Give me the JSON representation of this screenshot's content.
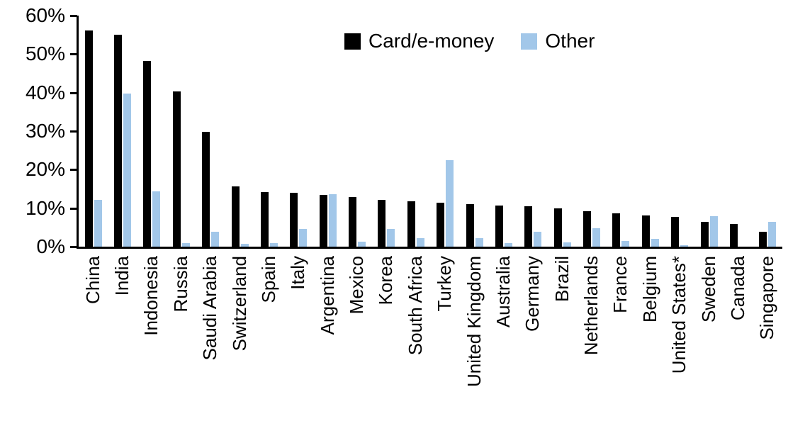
{
  "chart_data": {
    "type": "bar",
    "title": "",
    "xlabel": "",
    "ylabel": "",
    "ylim": [
      0,
      60
    ],
    "yticks": [
      0,
      10,
      20,
      30,
      40,
      50,
      60
    ],
    "ytick_labels": [
      "0%",
      "10%",
      "20%",
      "30%",
      "40%",
      "50%",
      "60%"
    ],
    "grid": false,
    "legend_position": "top-center",
    "categories": [
      "China",
      "India",
      "Indonesia",
      "Russia",
      "Saudi Arabia",
      "Switzerland",
      "Spain",
      "Italy",
      "Argentina",
      "Mexico",
      "Korea",
      "South Africa",
      "Turkey",
      "United Kingdom",
      "Australia",
      "Germany",
      "Brazil",
      "Netherlands",
      "France",
      "Belgium",
      "United States*",
      "Sweden",
      "Canada",
      "Singapore"
    ],
    "series": [
      {
        "name": "Card/e-money",
        "color": "#000000",
        "values": [
          56.2,
          55.0,
          48.2,
          40.4,
          29.8,
          15.7,
          14.2,
          14.0,
          13.4,
          12.9,
          12.1,
          11.7,
          11.5,
          11.0,
          10.7,
          10.5,
          10.0,
          9.2,
          8.6,
          8.1,
          7.8,
          6.5,
          5.9,
          3.8
        ]
      },
      {
        "name": "Other",
        "color": "#A2C7E9",
        "values": [
          12.2,
          39.7,
          14.4,
          0.9,
          3.9,
          0.8,
          0.9,
          4.6,
          13.7,
          1.2,
          4.6,
          2.3,
          22.4,
          2.3,
          1.0,
          3.9,
          1.1,
          4.7,
          1.5,
          2.0,
          0.3,
          8.0,
          0.0,
          6.5
        ]
      }
    ],
    "axis_color": "#000000",
    "background_color": "#ffffff"
  }
}
